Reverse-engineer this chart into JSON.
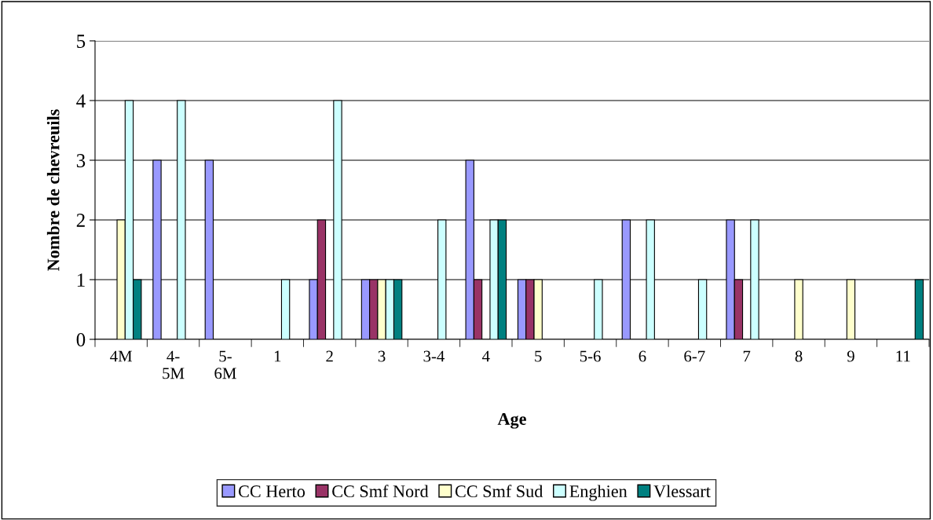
{
  "chart_data": {
    "type": "bar",
    "xlabel": "Age",
    "ylabel": "Nombre de chevreuils",
    "categories": [
      "4M",
      "4-\n5M",
      "5-\n6M",
      "1",
      "2",
      "3",
      "3-4",
      "4",
      "5",
      "5-6",
      "6",
      "6-7",
      "7",
      "8",
      "9",
      "11"
    ],
    "series": [
      {
        "name": "CC Herto",
        "color": "#9999ff",
        "values": [
          0,
          3,
          3,
          0,
          1,
          1,
          0,
          3,
          1,
          0,
          2,
          0,
          2,
          0,
          0,
          0
        ]
      },
      {
        "name": "CC Smf Nord",
        "color": "#993366",
        "values": [
          0,
          0,
          0,
          0,
          2,
          1,
          0,
          1,
          1,
          0,
          0,
          0,
          1,
          0,
          0,
          0
        ]
      },
      {
        "name": "CC Smf Sud",
        "color": "#ffffcc",
        "values": [
          2,
          0,
          0,
          0,
          0,
          1,
          0,
          0,
          1,
          0,
          0,
          0,
          0,
          1,
          1,
          0
        ]
      },
      {
        "name": "Enghien",
        "color": "#ccffff",
        "values": [
          4,
          4,
          0,
          1,
          4,
          1,
          2,
          2,
          0,
          1,
          2,
          1,
          2,
          0,
          0,
          0
        ]
      },
      {
        "name": "Vlessart",
        "color": "#008080",
        "values": [
          1,
          0,
          0,
          0,
          0,
          1,
          0,
          2,
          0,
          0,
          0,
          0,
          0,
          0,
          0,
          1
        ]
      }
    ],
    "ylim": [
      0,
      5
    ],
    "yticks": [
      0,
      1,
      2,
      3,
      4,
      5
    ],
    "grid": "y",
    "legend": "bottom"
  }
}
